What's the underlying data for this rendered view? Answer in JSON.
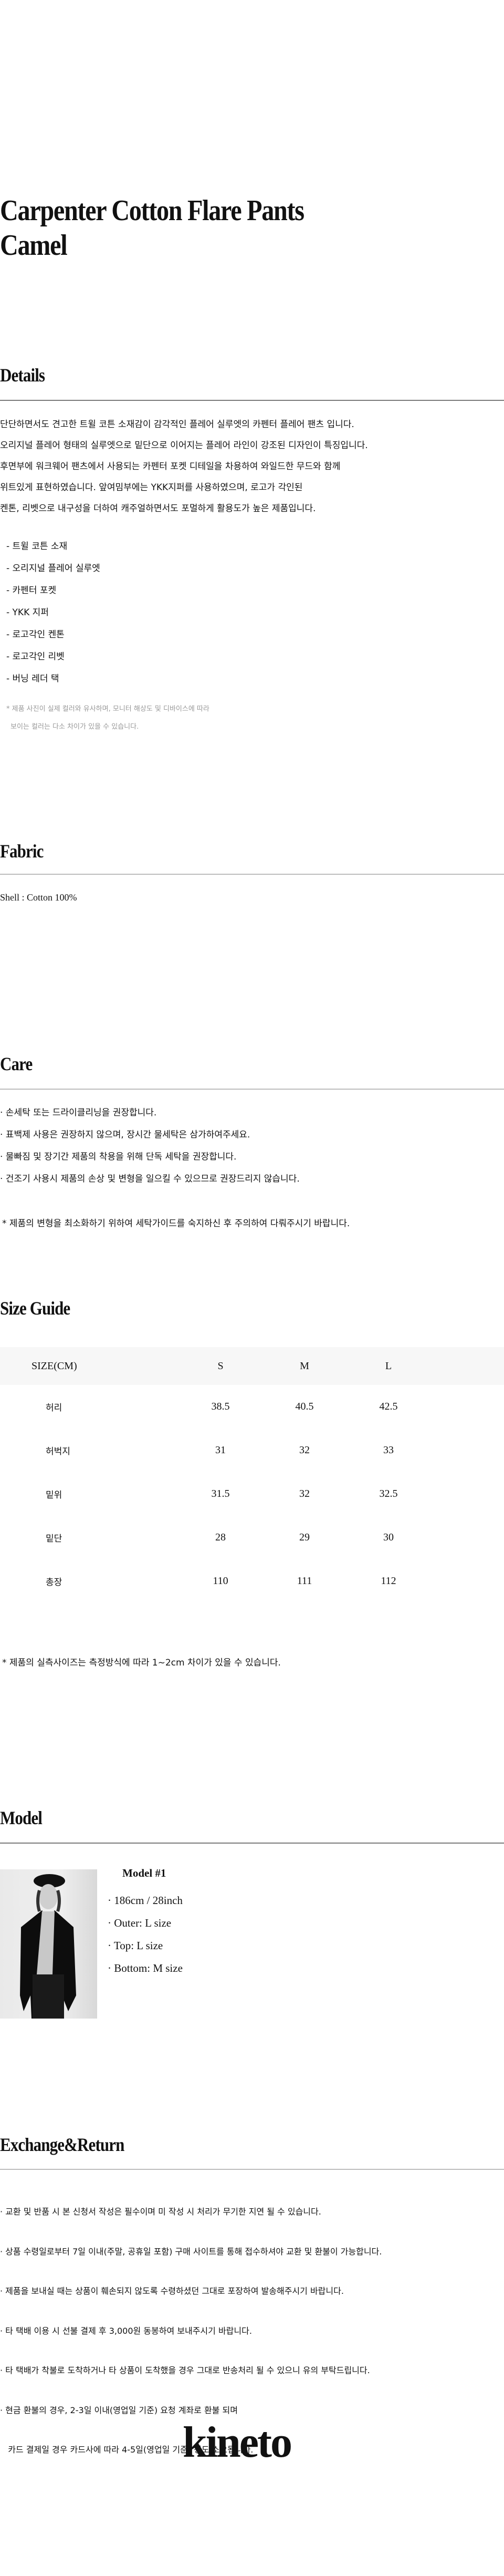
{
  "product": {
    "title_line1": "Carpenter Cotton Flare Pants",
    "title_line2": "Camel"
  },
  "details": {
    "heading": "Details",
    "paragraph": [
      "단단하면서도 견고한 트윌 코튼 소재감이 감각적인 플레어 실루엣의 카펜터 플레어 팬츠 입니다.",
      "오리지널 플레어 형태의 실루엣으로 밑단으로 이어지는 플레어 라인이 강조된 디자인이 특징입니다.",
      "후면부에 워크웨어 팬츠에서 사용되는 카펜터 포켓 디테일을 차용하여 와일드한 무드와 함께",
      "위트있게 표현하였습니다. 앞여밈부에는 YKK지퍼를 사용하였으며, 로고가 각인된",
      "켄톤, 리벳으로 내구성을 더하여 캐주얼하면서도 포멀하게 활용도가 높은 제품입니다."
    ],
    "features": [
      "- 트윌 코튼 소재",
      "- 오리지널 플레어 실루엣",
      "- 카펜터 포켓",
      "- YKK 지퍼",
      "- 로고각인 켄톤",
      "- 로고각인 리벳",
      "- 버닝 레더 택"
    ],
    "note": [
      "* 제품 사진이 실제 컬러와 유사하며, 모니터 해상도 및 디바이스에 따라",
      "보이는 컬러는 다소 차이가 있을 수 있습니다."
    ]
  },
  "fabric": {
    "heading": "Fabric",
    "text": "Shell : Cotton 100%"
  },
  "care": {
    "heading": "Care",
    "items": [
      "· 손세탁 또는 드라이클리닝을 권장합니다.",
      "· 표백제 사용은 권장하지 않으며, 장시간 물세탁은 삼가하여주세요.",
      "· 물빠짐 및 장기간 제품의 착용을 위해 단독 세탁을 권장합니다.",
      "· 건조기 사용시 제품의 손상 및 변형을 일으킬 수 있으므로 권장드리지 않습니다."
    ],
    "note": "* 제품의 변형을 최소화하기 위하여 세탁가이드를 숙지하신 후 주의하여 다뤄주시기 바랍니다."
  },
  "size_guide": {
    "heading": "Size Guide",
    "columns": [
      "SIZE(CM)",
      "S",
      "M",
      "L"
    ],
    "rows": [
      [
        "허리",
        "38.5",
        "40.5",
        "42.5"
      ],
      [
        "허벅지",
        "31",
        "32",
        "33"
      ],
      [
        "밑위",
        "31.5",
        "32",
        "32.5"
      ],
      [
        "밑단",
        "28",
        "29",
        "30"
      ],
      [
        "총장",
        "110",
        "111",
        "112"
      ]
    ],
    "note": "* 제품의 실측사이즈는 측정방식에 따라 1~2cm 차이가 있을 수 있습니다."
  },
  "model": {
    "heading": "Model",
    "name": "Model #1",
    "specs": [
      "· 186cm / 28inch",
      "· Outer: L size",
      "· Top: L size",
      "· Bottom: M size"
    ]
  },
  "exchange": {
    "heading": "Exchange&Return",
    "items": [
      "· 교환 및 반품 시 본 신청서 작성은 필수이며 미 작성 시 처리가 무기한 지연 될 수 있습니다.",
      "· 상품 수령일로부터 7일 이내(주말, 공휴일 포함) 구매 사이트를 통해 접수하셔야 교환 및 환불이 가능합니다.",
      "· 제품을 보내실 때는 상품이 훼손되지 않도록 수령하셨던 그대로 포장하여 발송해주시기 바랍니다.",
      "· 타 택배 이용 시 선불 결제 후 3,000원 동봉하여 보내주시기 바랍니다.",
      "· 타 택배가 착불로 도착하거나 타 상품이 도착했을 경우 그대로 반송처리 될 수 있으니 유의 부탁드립니다.",
      "· 현금 환불의 경우, 2-3일 이내(영업일 기준) 요청 계좌로 환불 되며",
      "   카드 결제일 경우 카드사에 따라 4-5일(영업일 기준) 정도 소요됩니다."
    ]
  },
  "brand": {
    "logo": "kineto"
  },
  "colors": {
    "text": "#111111",
    "muted": "#999999",
    "table_header_bg": "#f7f7f7",
    "rule": "#bdbdbd"
  }
}
